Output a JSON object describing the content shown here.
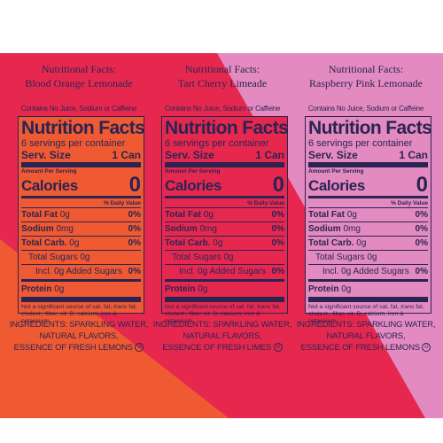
{
  "colors": {
    "crimson": "#e6284f",
    "pink": "#e38ac0",
    "orange": "#ef5a32",
    "ink": "#2b2452"
  },
  "panels": [
    {
      "heading_line1": "Nutritional Facts:",
      "heading_line2": "Blood Orange Lemonade",
      "contains": "Contains No Juice, Sodium or Caffeine",
      "title": "Nutrition Facts",
      "servings": "6 servings per container",
      "serv_size_label": "Serv. Size",
      "serv_size_value": "1 Can",
      "amount_per_serving": "Amount Per Serving",
      "calories_label": "Calories",
      "calories_value": "0",
      "dv_header": "% Daily Value",
      "rows": [
        {
          "label": "Total Fat",
          "amount": "0g",
          "dv": "0%"
        },
        {
          "label": "Sodium",
          "amount": "0mg",
          "dv": "0%"
        },
        {
          "label": "Total Carb.",
          "amount": "0g",
          "dv": "0%"
        },
        {
          "label": "Total Sugars 0g",
          "amount": "",
          "dv": ""
        },
        {
          "label": "Incl. 0g Added Sugars",
          "amount": "",
          "dv": "0%"
        },
        {
          "label": "Protein",
          "amount": "0g",
          "dv": ""
        }
      ],
      "footnote_a": "Not a significant source of sat. fat, ",
      "footnote_italic": "trans",
      "footnote_b": " fat, cholest., fiber, vit. D, calcium, iron & potassium.",
      "ingredients_1": "INGREDIENTS: SPARKLING WATER,",
      "ingredients_2": "NATURAL FLAVORS,",
      "ingredients_3": "ESSENCE OF FRESH LEMONS",
      "kosher": "U",
      "label_bg": "#ef5a32"
    },
    {
      "heading_line1": "Nutritional Facts:",
      "heading_line2": "Tart Cherry Limeade",
      "contains": "Contains No Juice, Sodium or Caffeine",
      "title": "Nutrition Facts",
      "servings": "6 servings per container",
      "serv_size_label": "Serv. Size",
      "serv_size_value": "1 Can",
      "amount_per_serving": "Amount Per Serving",
      "calories_label": "Calories",
      "calories_value": "0",
      "dv_header": "% Daily Value",
      "rows": [
        {
          "label": "Total Fat",
          "amount": "0g",
          "dv": "0%"
        },
        {
          "label": "Sodium",
          "amount": "0mg",
          "dv": "0%"
        },
        {
          "label": "Total Carb.",
          "amount": "0g",
          "dv": "0%"
        },
        {
          "label": "Total Sugars 0g",
          "amount": "",
          "dv": ""
        },
        {
          "label": "Incl. 0g Added Sugars",
          "amount": "",
          "dv": "0%"
        },
        {
          "label": "Protein",
          "amount": "0g",
          "dv": ""
        }
      ],
      "footnote_a": "Not a significant source of sat. fat, ",
      "footnote_italic": "trans",
      "footnote_b": " fat, cholest., fiber, vit. D, calcium, iron & potassium.",
      "ingredients_1": "INGREDIENTS: SPARKLING WATER,",
      "ingredients_2": "NATURAL FLAVORS,",
      "ingredients_3": "ESSENCE OF FRESH LIMES",
      "kosher": "U",
      "label_bg": "#e6284f"
    },
    {
      "heading_line1": "Nutritional Facts:",
      "heading_line2": "Raspberry Pink Lemonade",
      "contains": "Contains No Juice, Sodium or Caffeine",
      "title": "Nutrition Facts",
      "servings": "6 servings per container",
      "serv_size_label": "Serv. Size",
      "serv_size_value": "1 Can",
      "amount_per_serving": "Amount Per Serving",
      "calories_label": "Calories",
      "calories_value": "0",
      "dv_header": "% Daily Value",
      "rows": [
        {
          "label": "Total Fat",
          "amount": "0g",
          "dv": "0%"
        },
        {
          "label": "Sodium",
          "amount": "0mg",
          "dv": "0%"
        },
        {
          "label": "Total Carb.",
          "amount": "0g",
          "dv": "0%"
        },
        {
          "label": "Total Sugars 0g",
          "amount": "",
          "dv": ""
        },
        {
          "label": "Incl. 0g Added Sugars",
          "amount": "",
          "dv": "0%"
        },
        {
          "label": "Protein",
          "amount": "0g",
          "dv": ""
        }
      ],
      "footnote_a": "Not a significant source of sat. fat, ",
      "footnote_italic": "trans",
      "footnote_b": " fat, cholest., fiber, vit. D, calcium, iron & potassium.",
      "ingredients_1": "INGREDIENTS: SPARKLING WATER,",
      "ingredients_2": "NATURAL FLAVORS,",
      "ingredients_3": "ESSENCE OF FRESH LEMONS",
      "kosher": "U",
      "label_bg": "#e38ac0"
    }
  ]
}
